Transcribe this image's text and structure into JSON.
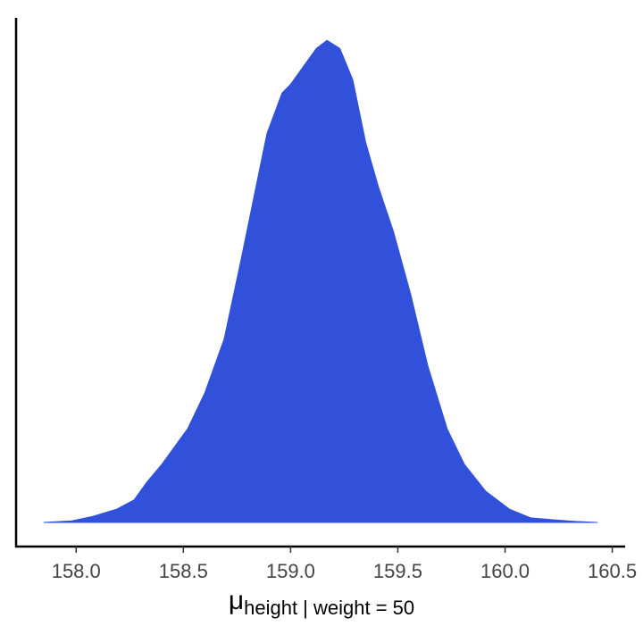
{
  "chart_data": {
    "type": "density",
    "x": [
      157.85,
      157.98,
      158.08,
      158.19,
      158.27,
      158.33,
      158.4,
      158.52,
      158.6,
      158.69,
      158.77,
      158.83,
      158.89,
      158.96,
      159.0,
      159.06,
      159.12,
      159.17,
      159.23,
      159.29,
      159.35,
      159.41,
      159.48,
      159.56,
      159.64,
      159.73,
      159.81,
      159.91,
      160.02,
      160.12,
      160.23,
      160.33,
      160.43
    ],
    "values": [
      0,
      0.005,
      0.019,
      0.041,
      0.069,
      0.124,
      0.179,
      0.288,
      0.398,
      0.563,
      0.81,
      1.003,
      1.195,
      1.319,
      1.346,
      1.401,
      1.456,
      1.481,
      1.456,
      1.36,
      1.168,
      1.03,
      0.893,
      0.701,
      0.481,
      0.288,
      0.179,
      0.096,
      0.041,
      0.014,
      0.008,
      0.003,
      0
    ],
    "color": "#3251db",
    "xlim": [
      157.72,
      160.56
    ],
    "ylim": [
      -0.074,
      1.55
    ],
    "xticks": [
      {
        "value": 158,
        "label": "158.0"
      },
      158.5,
      {
        "value": 159,
        "label": "159.0"
      },
      159.5,
      {
        "value": 160,
        "label": "160.0"
      },
      160.5
    ],
    "xlabel": {
      "symbol": "μ",
      "subscript": "height | weight = 50"
    },
    "grid": false
  }
}
